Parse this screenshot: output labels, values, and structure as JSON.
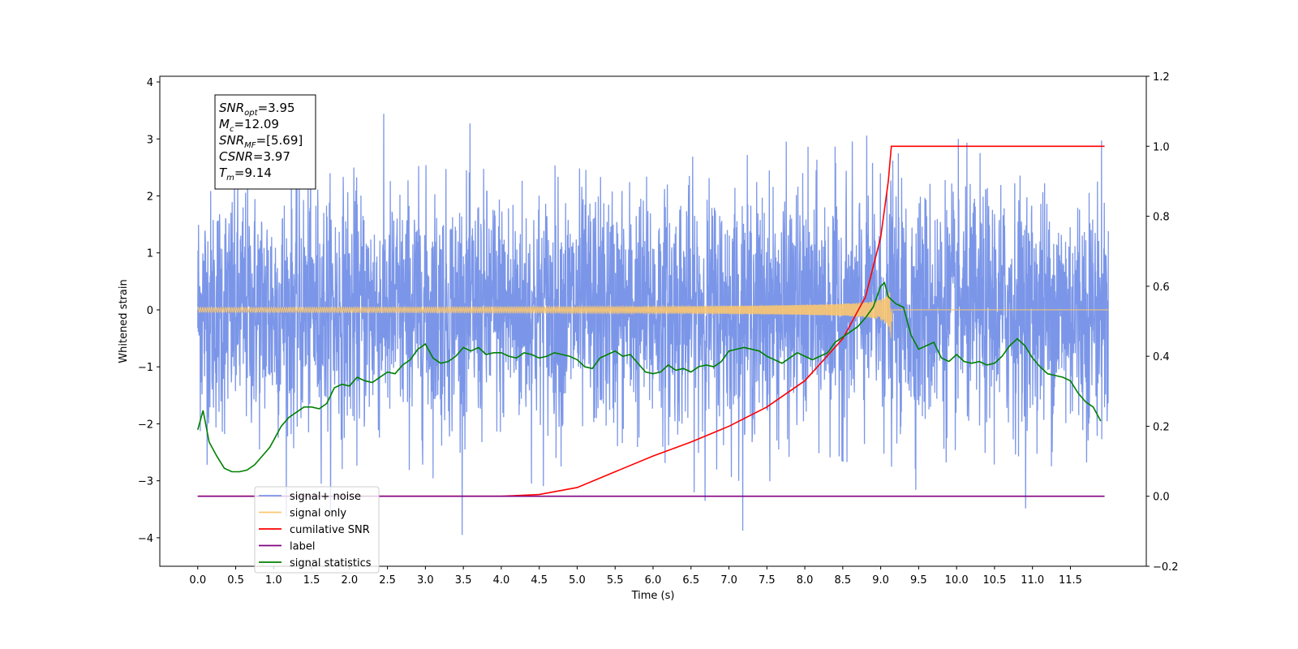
{
  "chart_data": {
    "type": "line",
    "xlabel": "Time (s)",
    "ylabel": "Whitened strain",
    "xlim": [
      -0.5,
      12.5
    ],
    "ylim": [
      -4.5,
      4.1
    ],
    "y2lim": [
      -0.2,
      1.2
    ],
    "x_ticks": [
      0.0,
      0.5,
      1.0,
      1.5,
      2.0,
      2.5,
      3.0,
      3.5,
      4.0,
      4.5,
      5.0,
      5.5,
      6.0,
      6.5,
      7.0,
      7.5,
      8.0,
      8.5,
      9.0,
      9.5,
      10.0,
      10.5,
      11.0,
      11.5
    ],
    "x_tick_labels": [
      "0.0",
      "0.5",
      "1.0",
      "1.5",
      "2.0",
      "2.5",
      "3.0",
      "3.5",
      "4.0",
      "4.5",
      "5.0",
      "5.5",
      "6.0",
      "6.5",
      "7.0",
      "7.5",
      "8.0",
      "8.5",
      "9.0",
      "9.5",
      "10.0",
      "10.5",
      "11.0",
      "11.5"
    ],
    "y_ticks": [
      -4,
      -3,
      -2,
      -1,
      0,
      1,
      2,
      3,
      4
    ],
    "y_tick_labels": [
      "−4",
      "−3",
      "−2",
      "−1",
      "0",
      "1",
      "2",
      "3",
      "4"
    ],
    "y2_ticks": [
      -0.2,
      0.0,
      0.2,
      0.4,
      0.6,
      0.8,
      1.0,
      1.2
    ],
    "y2_tick_labels": [
      "−0.2",
      "0.0",
      "0.2",
      "0.4",
      "0.6",
      "0.8",
      "1.0",
      "1.2"
    ],
    "grid": false,
    "legend_position": "bottom-left",
    "annotation": {
      "lines": [
        {
          "main": "SNR",
          "sub": "opt",
          "value": "=3.95"
        },
        {
          "main": "M",
          "sub": "c",
          "value": "=12.09"
        },
        {
          "main": "SNR",
          "sub": "MF",
          "value": "=[5.69]"
        },
        {
          "main": "CSNR",
          "sub": "",
          "value": "=3.97"
        },
        {
          "main": "T",
          "sub": "m",
          "value": "=9.14"
        }
      ]
    },
    "merger_time": 9.14,
    "duration": 12.0,
    "series": [
      {
        "name": "signal+ noise",
        "color": "#7b96e8",
        "axis": "left",
        "kind": "noise",
        "std": 1.05,
        "peak_high": 3.6,
        "peak_low": -3.95
      },
      {
        "name": "signal only",
        "color": "#fbc670",
        "axis": "left",
        "kind": "chirp",
        "peak": 0.75
      },
      {
        "name": "cumilative SNR",
        "color": "#ff0000",
        "axis": "right",
        "x": [
          0.0,
          2.0,
          4.0,
          4.5,
          5.0,
          5.5,
          6.0,
          6.5,
          7.0,
          7.5,
          8.0,
          8.5,
          8.8,
          9.0,
          9.1,
          9.14,
          11.95
        ],
        "y": [
          0.0,
          0.0,
          0.0,
          0.005,
          0.025,
          0.07,
          0.115,
          0.155,
          0.2,
          0.255,
          0.33,
          0.45,
          0.57,
          0.74,
          0.9,
          1.0,
          1.0
        ]
      },
      {
        "name": "label",
        "color": "#800080",
        "axis": "right",
        "x": [
          0.0,
          11.95
        ],
        "y": [
          0.0,
          0.0
        ]
      },
      {
        "name": "signal statistics",
        "color": "#008000",
        "axis": "right",
        "x": [
          0.0,
          0.07,
          0.15,
          0.25,
          0.35,
          0.45,
          0.55,
          0.65,
          0.75,
          0.85,
          0.95,
          1.0,
          1.1,
          1.2,
          1.3,
          1.4,
          1.5,
          1.6,
          1.7,
          1.8,
          1.9,
          2.0,
          2.1,
          2.2,
          2.3,
          2.4,
          2.5,
          2.6,
          2.7,
          2.8,
          2.9,
          3.0,
          3.1,
          3.2,
          3.3,
          3.4,
          3.5,
          3.6,
          3.7,
          3.8,
          3.9,
          4.0,
          4.1,
          4.2,
          4.3,
          4.4,
          4.5,
          4.6,
          4.7,
          4.8,
          4.9,
          5.0,
          5.1,
          5.2,
          5.3,
          5.4,
          5.5,
          5.6,
          5.7,
          5.8,
          5.9,
          6.0,
          6.1,
          6.2,
          6.3,
          6.4,
          6.5,
          6.6,
          6.7,
          6.8,
          6.9,
          7.0,
          7.1,
          7.2,
          7.3,
          7.4,
          7.5,
          7.6,
          7.7,
          7.8,
          7.9,
          8.0,
          8.1,
          8.2,
          8.3,
          8.4,
          8.5,
          8.6,
          8.7,
          8.8,
          8.9,
          9.0,
          9.05,
          9.1,
          9.2,
          9.3,
          9.4,
          9.5,
          9.6,
          9.7,
          9.8,
          9.9,
          10.0,
          10.1,
          10.2,
          10.3,
          10.4,
          10.5,
          10.6,
          10.7,
          10.8,
          10.9,
          11.0,
          11.1,
          11.2,
          11.3,
          11.4,
          11.5,
          11.6,
          11.7,
          11.8,
          11.9
        ],
        "y": [
          0.19,
          0.245,
          0.155,
          0.115,
          0.08,
          0.07,
          0.07,
          0.075,
          0.09,
          0.115,
          0.14,
          0.16,
          0.2,
          0.225,
          0.24,
          0.255,
          0.255,
          0.25,
          0.265,
          0.31,
          0.32,
          0.315,
          0.34,
          0.33,
          0.325,
          0.34,
          0.355,
          0.35,
          0.375,
          0.39,
          0.42,
          0.435,
          0.395,
          0.38,
          0.385,
          0.4,
          0.425,
          0.415,
          0.425,
          0.405,
          0.41,
          0.41,
          0.4,
          0.395,
          0.41,
          0.405,
          0.395,
          0.4,
          0.41,
          0.405,
          0.4,
          0.39,
          0.37,
          0.365,
          0.395,
          0.405,
          0.415,
          0.4,
          0.405,
          0.38,
          0.355,
          0.35,
          0.355,
          0.375,
          0.36,
          0.365,
          0.355,
          0.37,
          0.375,
          0.37,
          0.385,
          0.415,
          0.42,
          0.425,
          0.42,
          0.415,
          0.4,
          0.39,
          0.38,
          0.395,
          0.41,
          0.4,
          0.39,
          0.4,
          0.41,
          0.44,
          0.455,
          0.47,
          0.485,
          0.51,
          0.54,
          0.6,
          0.61,
          0.57,
          0.55,
          0.54,
          0.46,
          0.42,
          0.43,
          0.44,
          0.395,
          0.385,
          0.405,
          0.385,
          0.38,
          0.385,
          0.375,
          0.38,
          0.4,
          0.43,
          0.45,
          0.43,
          0.395,
          0.37,
          0.35,
          0.345,
          0.34,
          0.33,
          0.295,
          0.27,
          0.255,
          0.215
        ]
      }
    ]
  }
}
